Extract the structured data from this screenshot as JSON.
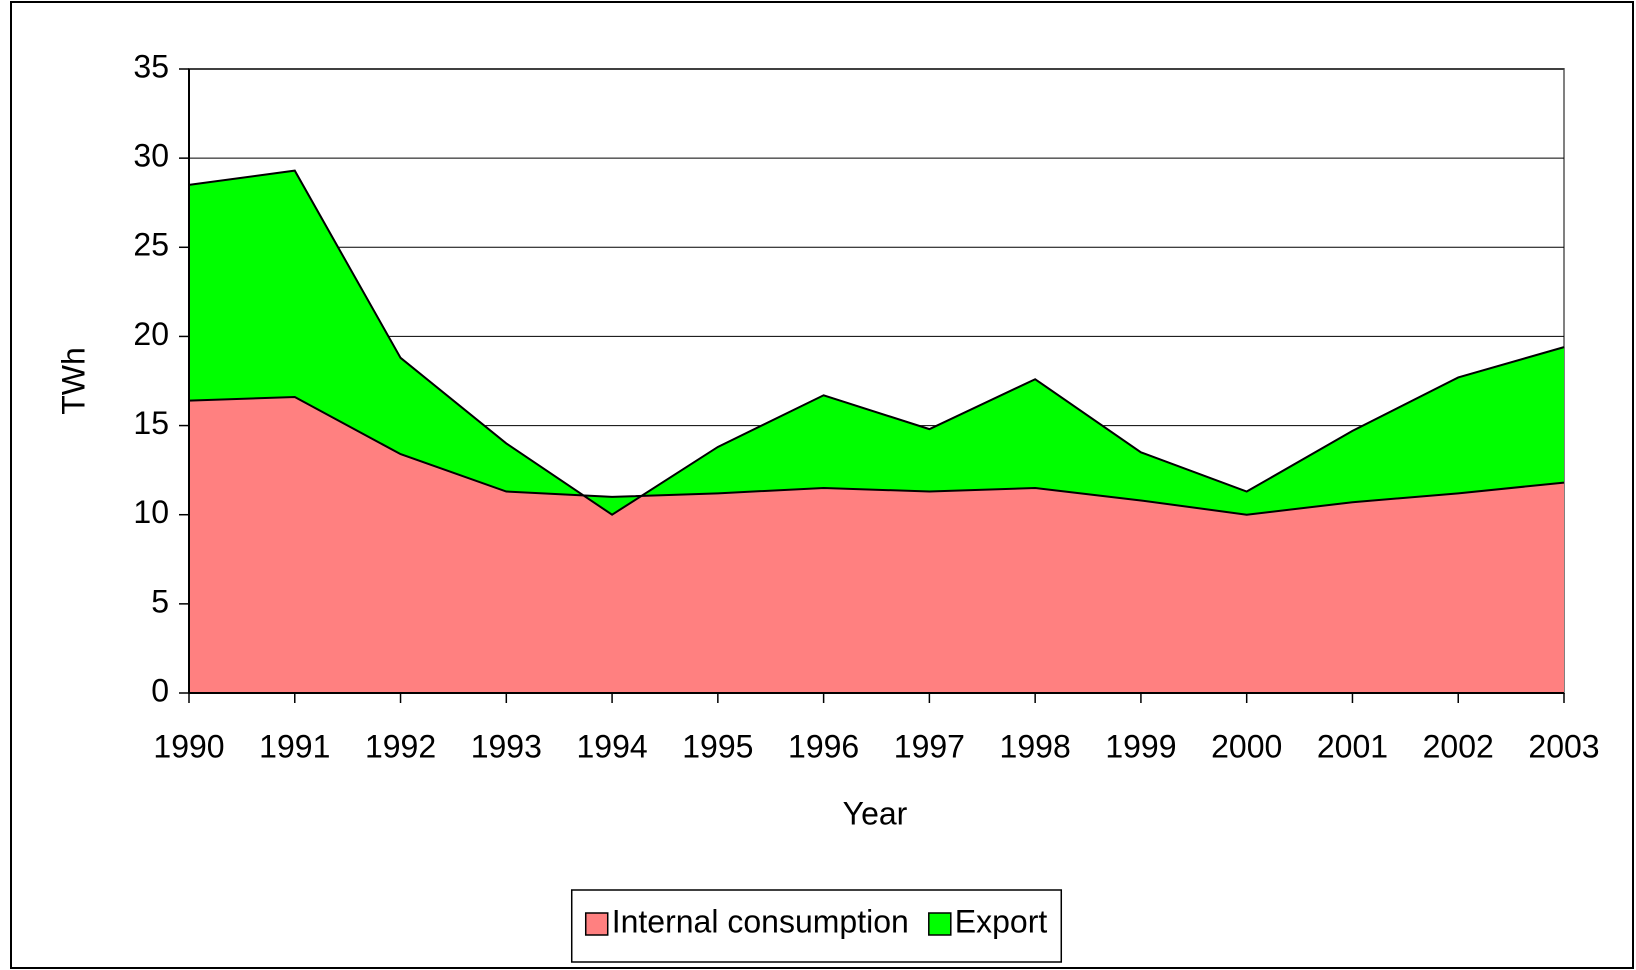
{
  "chart_data": {
    "type": "stacked_area",
    "x_label": "Year",
    "y_label": "TWh",
    "categories": [
      "1990",
      "1991",
      "1992",
      "1993",
      "1994",
      "1995",
      "1996",
      "1997",
      "1998",
      "1999",
      "2000",
      "2001",
      "2002",
      "2003"
    ],
    "series": [
      {
        "name": "Internal consumption",
        "color": "#ff8080",
        "values": [
          16.4,
          16.6,
          13.4,
          11.3,
          11.0,
          11.2,
          11.5,
          11.3,
          11.5,
          10.8,
          10.0,
          10.7,
          11.2,
          11.8
        ]
      },
      {
        "name": "Export",
        "color": "#00ff00",
        "values": [
          12.1,
          12.7,
          5.4,
          2.7,
          -1.0,
          2.6,
          5.2,
          3.5,
          6.1,
          2.7,
          1.3,
          4.0,
          6.5,
          7.6
        ]
      }
    ],
    "ylim": [
      0,
      35
    ],
    "yticks": [
      0,
      5,
      10,
      15,
      20,
      25,
      30,
      35
    ],
    "grid": true,
    "legend": "bottom"
  }
}
